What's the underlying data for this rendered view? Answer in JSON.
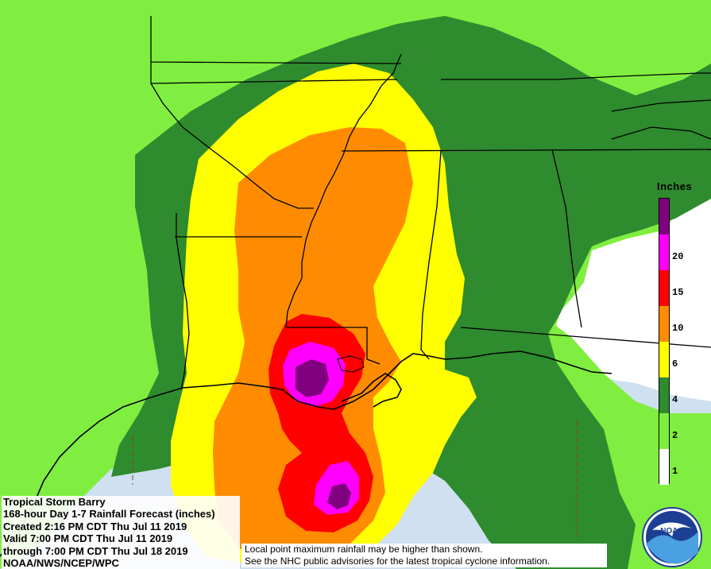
{
  "map": {
    "title_lines": [
      "Tropical Storm Barry",
      "168-hour Day 1-7 Rainfall Forecast (inches)",
      "Created 2:16 PM CDT Thu Jul 11 2019",
      "Valid 7:00 PM CDT Thu Jul 11 2019",
      "through 7:00 PM CDT Thu Jul 18 2019",
      "NOAA/NWS/NCEP/WPC"
    ],
    "disclaimer_lines": [
      "Local point maximum rainfall may be higher than shown.",
      "See the NHC public advisories for the latest tropical cyclone information."
    ],
    "logo_text": "NOAA",
    "colors": {
      "water": "#cfe0f0",
      "under_1": "#ffffff",
      "in_1_2": "#80ee40",
      "in_2_4": "#2e8b2e",
      "in_4_6": "#ffff00",
      "in_6_10": "#ff8c00",
      "in_10_15": "#ff0000",
      "in_15_20": "#ff00ff",
      "over_20": "#800080"
    }
  },
  "legend": {
    "title": "Inches",
    "bins": [
      {
        "label": "",
        "color": "#800080"
      },
      {
        "label": "20",
        "color": "#ff00ff"
      },
      {
        "label": "15",
        "color": "#ff0000"
      },
      {
        "label": "10",
        "color": "#ff8c00"
      },
      {
        "label": "6",
        "color": "#ffff00"
      },
      {
        "label": "4",
        "color": "#2e8b2e"
      },
      {
        "label": "2",
        "color": "#80ee40"
      },
      {
        "label": "1",
        "color": "#ffffff"
      }
    ]
  }
}
